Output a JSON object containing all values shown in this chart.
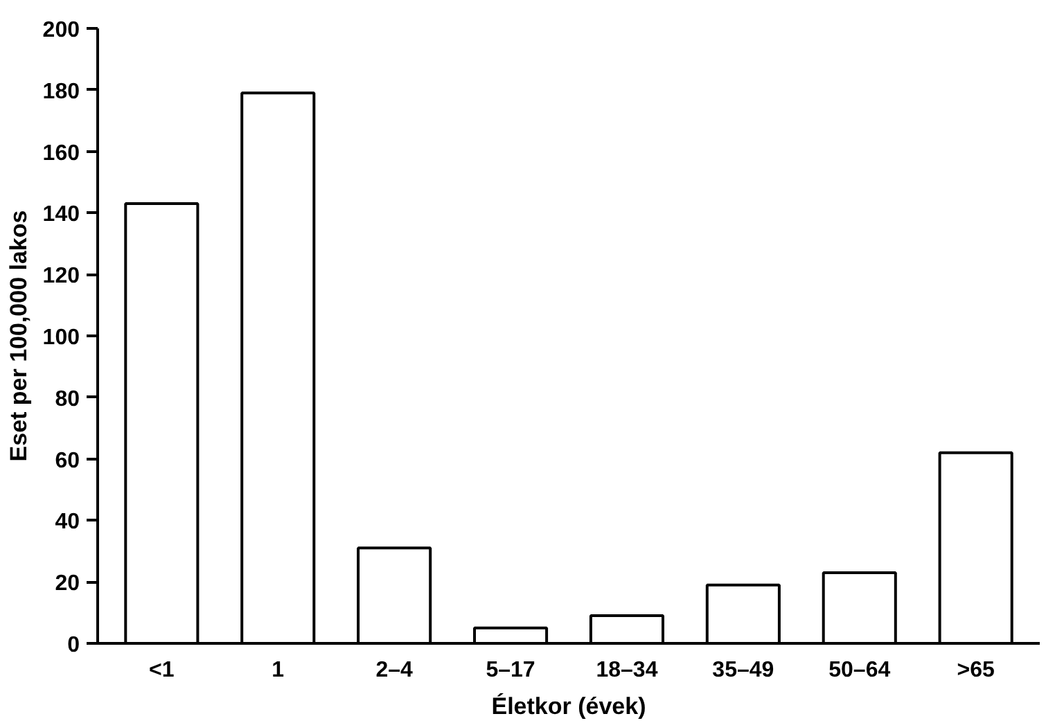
{
  "chart_data": {
    "type": "bar",
    "xlabel": "Életkor (évek)",
    "ylabel": "Eset per 100,000 lakos",
    "categories": [
      "<1",
      "1",
      "2–4",
      "5–17",
      "18–34",
      "35–49",
      "50–64",
      ">65"
    ],
    "values": [
      143,
      179,
      31,
      5,
      9,
      19,
      23,
      62
    ],
    "color": "#ffffff",
    "ylim": [
      0,
      200
    ],
    "yticks": [
      0,
      20,
      40,
      60,
      80,
      100,
      120,
      140,
      160,
      180,
      200
    ],
    "grid": false
  }
}
